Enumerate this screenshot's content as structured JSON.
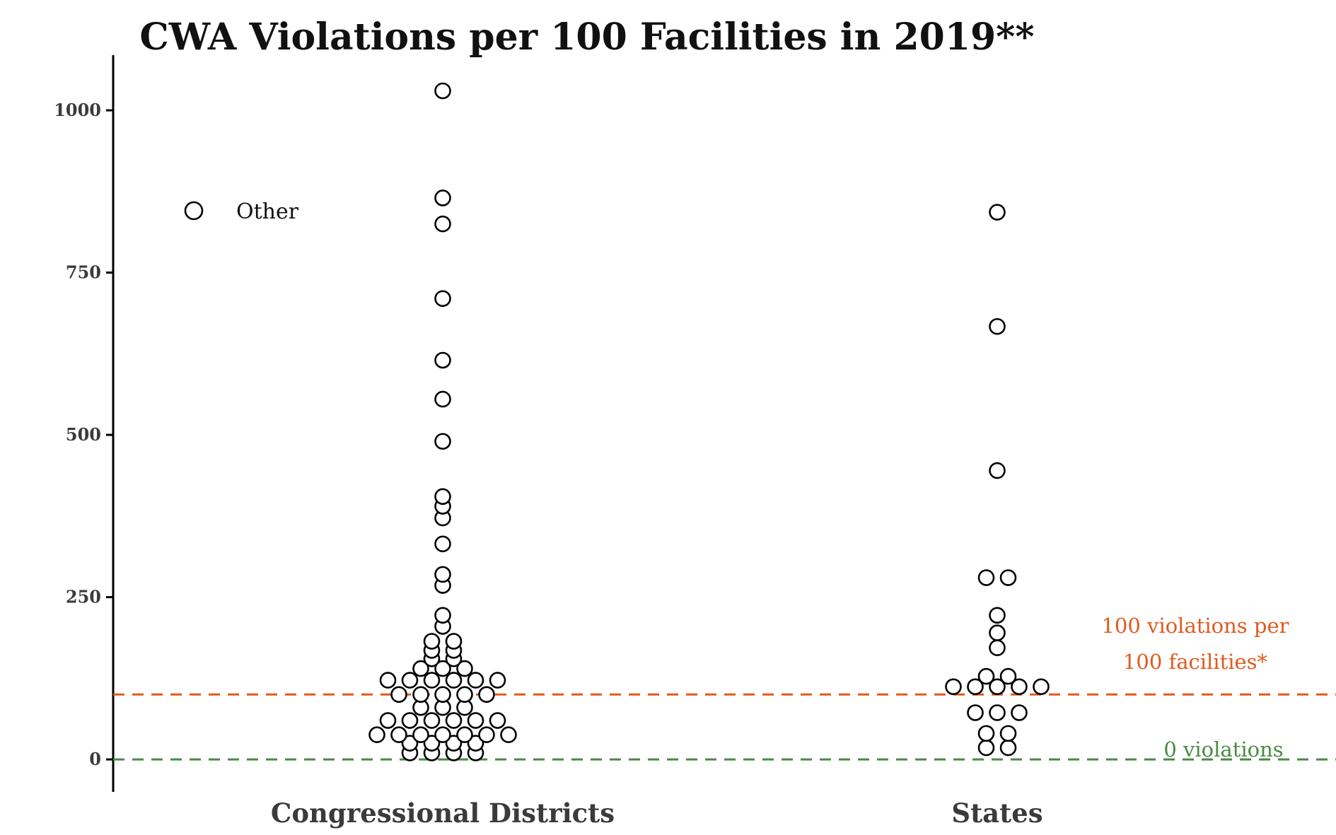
{
  "chart_data": {
    "type": "scatter",
    "title": "CWA Violations per 100 Facilities in 2019**",
    "xlabel": "",
    "ylabel": "",
    "ylim": [
      -50,
      1085
    ],
    "yticks": [
      0,
      250,
      500,
      750,
      1000
    ],
    "ytick_labels": [
      "0",
      "250",
      "500",
      "750",
      "1000"
    ],
    "categories": [
      "Congressional Districts",
      "States"
    ],
    "grid": false,
    "legend": {
      "placement": "top-left",
      "entries": [
        "Other"
      ]
    },
    "reference_lines": [
      {
        "name": "100 violations per 100 facilities*",
        "value": 100,
        "color": "#e05a1e",
        "label_lines": [
          "100 violations per",
          "100 facilities*"
        ]
      },
      {
        "name": "0 violations",
        "value": 0,
        "color": "#4a8a43",
        "label_lines": [
          "0 violations"
        ]
      }
    ],
    "series": [
      {
        "name": "Other",
        "category": "Congressional Districts",
        "values": [
          1030,
          865,
          825,
          710,
          615,
          555,
          490,
          405,
          390,
          372,
          332,
          285,
          268,
          222,
          205,
          182,
          182,
          168,
          168,
          155,
          155,
          140,
          140,
          140,
          122,
          122,
          122,
          122,
          122,
          122,
          100,
          100,
          100,
          100,
          100,
          80,
          80,
          80,
          60,
          60,
          60,
          60,
          60,
          60,
          38,
          38,
          38,
          38,
          38,
          38,
          38,
          25,
          25,
          25,
          25,
          10,
          10,
          10,
          10
        ]
      },
      {
        "name": "Other",
        "category": "States",
        "values": [
          843,
          667,
          445,
          280,
          280,
          222,
          195,
          172,
          128,
          128,
          112,
          112,
          112,
          112,
          112,
          72,
          72,
          72,
          40,
          40,
          18,
          18
        ]
      }
    ]
  }
}
